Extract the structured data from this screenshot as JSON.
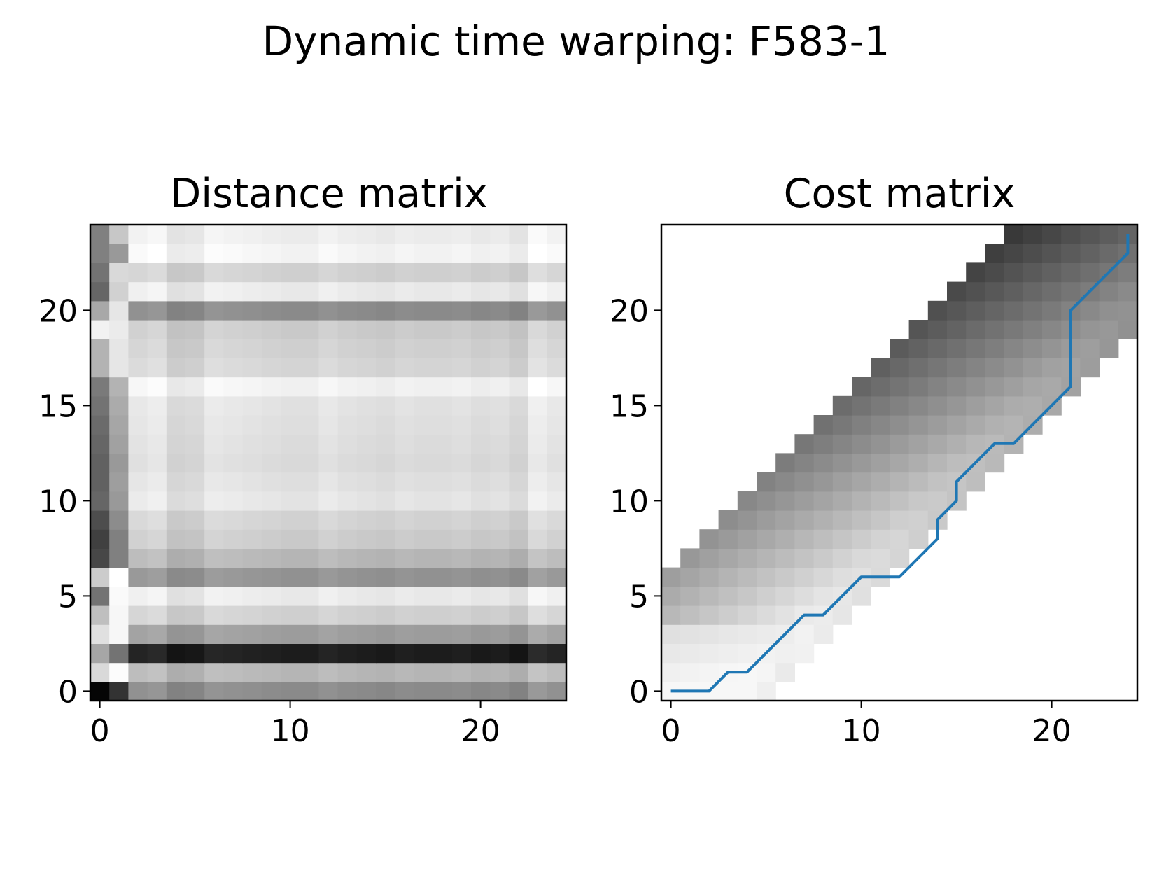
{
  "figure": {
    "title": "Dynamic time warping: F583-1"
  },
  "chart_data": [
    {
      "type": "heatmap",
      "title": "Distance matrix",
      "xlabel": "",
      "ylabel": "",
      "xlim": [
        -0.5,
        24.5
      ],
      "ylim": [
        -0.5,
        24.5
      ],
      "xticks": [
        0,
        10,
        20
      ],
      "yticks": [
        0,
        5,
        10,
        15,
        20
      ],
      "colormap": "gray",
      "grid": false,
      "n_rows": 25,
      "n_cols": 25,
      "row_profile": [
        0.55,
        0.72,
        0.12,
        0.62,
        0.82,
        0.92,
        0.58,
        0.72,
        0.8,
        0.83,
        0.9,
        0.88,
        0.86,
        0.87,
        0.88,
        0.89,
        0.95,
        0.84,
        0.82,
        0.8,
        0.55,
        0.92,
        0.82,
        0.96,
        0.93
      ],
      "first_col": [
        0.02,
        0.85,
        0.65,
        0.88,
        0.75,
        0.45,
        0.8,
        0.28,
        0.25,
        0.3,
        0.4,
        0.38,
        0.38,
        0.4,
        0.42,
        0.45,
        0.48,
        0.7,
        0.7,
        0.95,
        0.66,
        0.4,
        0.45,
        0.5,
        0.5
      ],
      "second_col": [
        0.2,
        0.99,
        0.45,
        0.97,
        0.97,
        0.98,
        1.0,
        0.5,
        0.5,
        0.55,
        0.6,
        0.62,
        0.6,
        0.63,
        0.65,
        0.67,
        0.7,
        0.9,
        0.9,
        0.92,
        0.9,
        0.82,
        0.85,
        0.6,
        0.78
      ],
      "col_profile": [
        0,
        0,
        0.02,
        0.04,
        -0.04,
        -0.03,
        0.03,
        0.02,
        0.01,
        0.0,
        -0.01,
        -0.01,
        0.02,
        0.0,
        -0.01,
        -0.02,
        0.0,
        -0.01,
        -0.01,
        0.0,
        -0.02,
        -0.01,
        -0.04,
        0.05,
        0.02
      ]
    },
    {
      "type": "heatmap",
      "title": "Cost matrix",
      "xlabel": "",
      "ylabel": "",
      "xlim": [
        -0.5,
        24.5
      ],
      "ylim": [
        -0.5,
        24.5
      ],
      "xticks": [
        0,
        10,
        20
      ],
      "yticks": [
        0,
        5,
        10,
        15,
        20
      ],
      "colormap": "gray",
      "grid": false,
      "band_lower": [
        0,
        0,
        0,
        0,
        0,
        0,
        0,
        1,
        2,
        3,
        4,
        5,
        6,
        7,
        8,
        9,
        10,
        11,
        12,
        13,
        14,
        15,
        16,
        17,
        18
      ],
      "band_upper": [
        5,
        6,
        7,
        8,
        9,
        10,
        11,
        12,
        13,
        14,
        15,
        16,
        17,
        18,
        19,
        20,
        21,
        22,
        23,
        24,
        24,
        24,
        24,
        24,
        24
      ],
      "warping_path": {
        "color": "#1f77b4",
        "x": [
          0,
          1,
          2,
          3,
          4,
          5,
          6,
          7,
          8,
          9,
          10,
          11,
          12,
          13,
          14,
          14,
          15,
          15,
          16,
          17,
          18,
          19,
          20,
          21,
          21,
          22,
          23,
          24,
          24
        ],
        "y": [
          0,
          0,
          0,
          1,
          1,
          2,
          3,
          4,
          4,
          5,
          6,
          6,
          6,
          7,
          8,
          9,
          10,
          11,
          12,
          13,
          13,
          14,
          15,
          16,
          20,
          21,
          22,
          23,
          24
        ]
      }
    }
  ]
}
